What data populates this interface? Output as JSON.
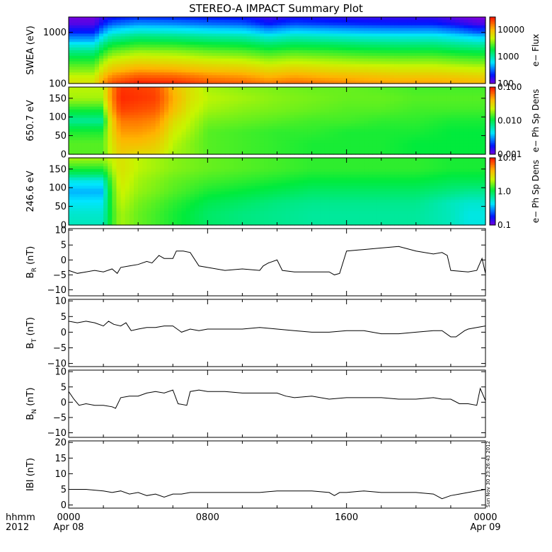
{
  "title": "STEREO-A IMPACT Summary Plot",
  "time_axis": {
    "corner_labels": [
      "hhmm",
      "2012"
    ],
    "ticks": [
      {
        "label": "0000",
        "sub": "Apr 08",
        "hour": 0
      },
      {
        "label": "0800",
        "sub": "",
        "hour": 8
      },
      {
        "label": "1600",
        "sub": "",
        "hour": 16
      },
      {
        "label": "0000",
        "sub": "Apr 09",
        "hour": 24
      }
    ]
  },
  "stamp": "Sun Nov 30 23:26:43 2012",
  "colors": {
    "frame": "#000000",
    "trace": "#000000",
    "background": "#ffffff"
  },
  "chart_data": [
    {
      "type": "heatmap",
      "name": "swea",
      "ylabel": "SWEA (eV)",
      "yscale": "log",
      "ylim": [
        100,
        2000
      ],
      "yticks": [
        {
          "v": 100,
          "label": "100"
        },
        {
          "v": 1000,
          "label": "1000"
        }
      ],
      "colorbar": {
        "label": "e− Flux",
        "scale": "log",
        "range": [
          100,
          30000
        ],
        "ticks": [
          {
            "v": 100,
            "label": "100"
          },
          {
            "v": 1000,
            "label": "1000"
          },
          {
            "v": 10000,
            "label": "10000"
          }
        ]
      },
      "time": [
        0,
        1.5,
        2.5,
        4,
        6,
        8,
        10,
        11.5,
        13,
        15,
        17,
        19,
        21,
        22.5,
        23.5,
        24
      ],
      "energy_levels": [
        100,
        130,
        180,
        250,
        350,
        500,
        700,
        1000,
        1400,
        2000
      ],
      "flux": [
        [
          6000,
          5000,
          3500,
          2500,
          1600,
          900,
          450,
          220,
          130,
          100
        ],
        [
          6000,
          5000,
          3500,
          2500,
          1600,
          900,
          450,
          220,
          130,
          100
        ],
        [
          20000,
          15000,
          9000,
          6000,
          3800,
          2300,
          1300,
          650,
          320,
          180
        ],
        [
          28000,
          20000,
          12000,
          7500,
          4800,
          2900,
          1700,
          850,
          420,
          220
        ],
        [
          26000,
          19000,
          11000,
          7000,
          4500,
          2800,
          1600,
          800,
          400,
          210
        ],
        [
          20000,
          15000,
          9000,
          6000,
          3800,
          2400,
          1400,
          700,
          350,
          190
        ],
        [
          18000,
          13500,
          8500,
          5500,
          3500,
          2200,
          1300,
          650,
          320,
          180
        ],
        [
          15000,
          11000,
          7000,
          4500,
          2900,
          1800,
          1000,
          480,
          220,
          130
        ],
        [
          17000,
          12500,
          8000,
          5000,
          3300,
          2000,
          1200,
          600,
          290,
          160
        ],
        [
          15000,
          11000,
          7000,
          4600,
          3000,
          1900,
          1100,
          550,
          260,
          150
        ],
        [
          13000,
          10000,
          6500,
          4200,
          2700,
          1700,
          1000,
          500,
          240,
          140
        ],
        [
          12000,
          9000,
          6000,
          4000,
          2600,
          1600,
          950,
          480,
          230,
          140
        ],
        [
          12000,
          9000,
          6000,
          4000,
          2600,
          1600,
          950,
          480,
          230,
          140
        ],
        [
          11000,
          8500,
          5500,
          3600,
          2300,
          1400,
          800,
          380,
          180,
          100
        ],
        [
          10000,
          8000,
          5200,
          3400,
          2200,
          1300,
          700,
          300,
          140,
          90
        ],
        [
          10000,
          8000,
          5200,
          3400,
          2200,
          1300,
          700,
          300,
          140,
          90
        ]
      ]
    },
    {
      "type": "heatmap",
      "name": "pad_650",
      "ylabel": "650.7 eV",
      "yscale": "linear",
      "ylim": [
        0,
        180
      ],
      "yticks": [
        {
          "v": 0,
          "label": "0"
        },
        {
          "v": 50,
          "label": "50"
        },
        {
          "v": 100,
          "label": "100"
        },
        {
          "v": 150,
          "label": "150"
        }
      ],
      "colorbar": {
        "label": "e− Ph Sp Dens",
        "scale": "log",
        "range": [
          0.001,
          0.1
        ],
        "ticks": [
          {
            "v": 0.001,
            "label": "0.001"
          },
          {
            "v": 0.01,
            "label": "0.010"
          },
          {
            "v": 0.1,
            "label": "0.100"
          }
        ]
      },
      "time": [
        0,
        1,
        2,
        3,
        4,
        5,
        6,
        7,
        8,
        10,
        12,
        14,
        16,
        18,
        20,
        22,
        23,
        24
      ],
      "pitch_angle": [
        0,
        30,
        60,
        90,
        120,
        150,
        180
      ],
      "density": [
        [
          0.015,
          0.015,
          0.012,
          0.007,
          0.012,
          0.02,
          0.022
        ],
        [
          0.015,
          0.015,
          0.012,
          0.007,
          0.012,
          0.02,
          0.022
        ],
        [
          0.015,
          0.015,
          0.012,
          0.007,
          0.012,
          0.02,
          0.022
        ],
        [
          0.035,
          0.04,
          0.05,
          0.06,
          0.08,
          0.09,
          0.085
        ],
        [
          0.03,
          0.04,
          0.05,
          0.06,
          0.075,
          0.085,
          0.08
        ],
        [
          0.03,
          0.035,
          0.045,
          0.055,
          0.07,
          0.08,
          0.075
        ],
        [
          0.02,
          0.022,
          0.025,
          0.03,
          0.04,
          0.045,
          0.04
        ],
        [
          0.018,
          0.018,
          0.02,
          0.022,
          0.025,
          0.028,
          0.028
        ],
        [
          0.015,
          0.015,
          0.015,
          0.017,
          0.02,
          0.022,
          0.02
        ],
        [
          0.014,
          0.014,
          0.014,
          0.016,
          0.018,
          0.02,
          0.018
        ],
        [
          0.013,
          0.013,
          0.013,
          0.015,
          0.017,
          0.018,
          0.017
        ],
        [
          0.012,
          0.012,
          0.013,
          0.014,
          0.016,
          0.017,
          0.016
        ],
        [
          0.012,
          0.012,
          0.012,
          0.014,
          0.015,
          0.016,
          0.016
        ],
        [
          0.012,
          0.012,
          0.012,
          0.013,
          0.015,
          0.016,
          0.015
        ],
        [
          0.011,
          0.011,
          0.012,
          0.013,
          0.014,
          0.015,
          0.014
        ],
        [
          0.011,
          0.011,
          0.011,
          0.012,
          0.014,
          0.015,
          0.014
        ],
        [
          0.011,
          0.011,
          0.011,
          0.012,
          0.014,
          0.015,
          0.014
        ],
        [
          0.011,
          0.011,
          0.011,
          0.012,
          0.014,
          0.015,
          0.014
        ]
      ]
    },
    {
      "type": "heatmap",
      "name": "pad_246",
      "ylabel": "246.6 eV",
      "yscale": "linear",
      "ylim": [
        0,
        180
      ],
      "yticks": [
        {
          "v": 0,
          "label": "0"
        },
        {
          "v": 50,
          "label": "50"
        },
        {
          "v": 100,
          "label": "100"
        },
        {
          "v": 150,
          "label": "150"
        }
      ],
      "colorbar": {
        "label": "e− Ph Sp Dens",
        "scale": "log",
        "range": [
          0.1,
          10
        ],
        "ticks": [
          {
            "v": 0.1,
            "label": "0.1"
          },
          {
            "v": 1,
            "label": "1.0"
          },
          {
            "v": 10,
            "label": "10.0"
          }
        ]
      },
      "time": [
        0,
        1,
        2,
        3,
        4,
        6,
        8,
        10,
        12,
        14,
        16,
        18,
        20,
        22,
        23,
        24
      ],
      "pitch_angle": [
        0,
        30,
        60,
        90,
        120,
        150,
        180
      ],
      "density": [
        [
          0.6,
          0.55,
          0.45,
          0.35,
          0.5,
          1.2,
          2.0
        ],
        [
          0.6,
          0.55,
          0.45,
          0.35,
          0.5,
          1.2,
          2.0
        ],
        [
          0.6,
          0.55,
          0.45,
          0.35,
          0.5,
          1.2,
          2.0
        ],
        [
          2.0,
          2.0,
          2.2,
          2.4,
          2.6,
          2.8,
          2.8
        ],
        [
          1.6,
          1.6,
          1.7,
          1.9,
          2.0,
          2.2,
          2.2
        ],
        [
          1.2,
          1.2,
          1.3,
          1.5,
          1.6,
          1.8,
          1.8
        ],
        [
          0.9,
          0.9,
          1.0,
          1.2,
          1.4,
          1.6,
          1.6
        ],
        [
          0.8,
          0.8,
          0.9,
          1.1,
          1.3,
          1.5,
          1.5
        ],
        [
          0.75,
          0.75,
          0.8,
          1.0,
          1.2,
          1.4,
          1.4
        ],
        [
          0.7,
          0.7,
          0.75,
          0.9,
          1.1,
          1.3,
          1.3
        ],
        [
          0.7,
          0.7,
          0.75,
          0.9,
          1.1,
          1.3,
          1.3
        ],
        [
          0.7,
          0.7,
          0.75,
          0.9,
          1.1,
          1.3,
          1.3
        ],
        [
          0.7,
          0.7,
          0.75,
          0.9,
          1.1,
          1.3,
          1.3
        ],
        [
          0.6,
          0.6,
          0.6,
          0.8,
          1.0,
          1.2,
          1.2
        ],
        [
          0.5,
          0.5,
          0.55,
          0.75,
          1.0,
          1.2,
          1.2
        ],
        [
          0.5,
          0.5,
          0.55,
          0.75,
          1.0,
          1.2,
          1.2
        ]
      ]
    },
    {
      "type": "line",
      "name": "br",
      "ylabel_main": "B",
      "ylabel_sub": "R",
      "ylabel_unit": " (nT)",
      "ylim": [
        -12,
        10.5
      ],
      "yticks": [
        {
          "v": -10,
          "label": "−10"
        },
        {
          "v": -5,
          "label": "−5"
        },
        {
          "v": 0,
          "label": "0"
        },
        {
          "v": 5,
          "label": "5"
        },
        {
          "v": 10,
          "label": "10"
        }
      ],
      "x": [
        0,
        0.5,
        1,
        1.5,
        2,
        2.5,
        2.8,
        3,
        3.5,
        4,
        4.5,
        4.8,
        5.2,
        5.5,
        6,
        6.2,
        6.6,
        7,
        7.5,
        8,
        9,
        10,
        11,
        11.2,
        11.5,
        12,
        12.3,
        13,
        14,
        15,
        15.3,
        15.6,
        16,
        17,
        18,
        19,
        20,
        21,
        21.5,
        21.8,
        22,
        23,
        23.5,
        23.8,
        24
      ],
      "y": [
        -3.5,
        -4.5,
        -4,
        -3.5,
        -4,
        -3,
        -4.5,
        -2.5,
        -2,
        -1.5,
        -0.5,
        -1,
        1.5,
        0.5,
        0.5,
        3,
        3,
        2.5,
        -2,
        -2.5,
        -3.5,
        -3,
        -3.5,
        -2,
        -1,
        0,
        -3.5,
        -4,
        -4,
        -4,
        -5,
        -4.5,
        3,
        3.5,
        4,
        4.5,
        3,
        2,
        2.5,
        1.5,
        -3.5,
        -4,
        -3.5,
        0.5,
        -4.5
      ]
    },
    {
      "type": "line",
      "name": "bt",
      "ylabel_main": "B",
      "ylabel_sub": "T",
      "ylabel_unit": " (nT)",
      "ylim": [
        -11,
        10.5
      ],
      "yticks": [
        {
          "v": -10,
          "label": "−10"
        },
        {
          "v": -5,
          "label": "−5"
        },
        {
          "v": 0,
          "label": "0"
        },
        {
          "v": 5,
          "label": "5"
        },
        {
          "v": 10,
          "label": "10"
        }
      ],
      "x": [
        0,
        0.5,
        1,
        1.5,
        2,
        2.3,
        2.6,
        3,
        3.3,
        3.6,
        4,
        4.5,
        5,
        5.5,
        6,
        6.5,
        7,
        7.5,
        8,
        9,
        10,
        11,
        12,
        13,
        14,
        15,
        16,
        17,
        18,
        19,
        20,
        21,
        21.5,
        22,
        22.3,
        22.8,
        23,
        23.5,
        24
      ],
      "y": [
        3.5,
        3,
        3.5,
        3,
        2,
        3.5,
        2.5,
        2,
        3,
        0.5,
        1,
        1.5,
        1.5,
        2,
        2,
        0,
        1,
        0.5,
        1,
        1,
        1,
        1.5,
        1,
        0.5,
        0,
        0,
        0.5,
        0.5,
        -0.5,
        -0.5,
        0,
        0.5,
        0.5,
        -1.5,
        -1.5,
        0.5,
        1,
        1.5,
        2
      ]
    },
    {
      "type": "line",
      "name": "bn",
      "ylabel_main": "B",
      "ylabel_sub": "N",
      "ylabel_unit": " (nT)",
      "ylim": [
        -11.5,
        10.5
      ],
      "yticks": [
        {
          "v": -10,
          "label": "−10"
        },
        {
          "v": -5,
          "label": "−5"
        },
        {
          "v": 0,
          "label": "0"
        },
        {
          "v": 5,
          "label": "5"
        },
        {
          "v": 10,
          "label": "10"
        }
      ],
      "x": [
        0,
        0.3,
        0.6,
        1,
        1.5,
        2,
        2.5,
        2.7,
        3,
        3.5,
        4,
        4.5,
        5,
        5.5,
        6,
        6.3,
        6.8,
        7,
        7.5,
        8,
        9,
        10,
        11,
        12,
        12.5,
        13,
        14,
        15,
        16,
        17,
        18,
        19,
        20,
        21,
        21.5,
        22,
        22.5,
        23,
        23.5,
        23.7,
        24
      ],
      "y": [
        3.5,
        1,
        -1,
        -0.5,
        -1,
        -1,
        -1.5,
        -2,
        1.5,
        2,
        2,
        3,
        3.5,
        3,
        4,
        -0.5,
        -1,
        3.5,
        4,
        3.5,
        3.5,
        3,
        3,
        3,
        2,
        1.5,
        2,
        1,
        1.5,
        1.5,
        1.5,
        1,
        1,
        1.5,
        1,
        1,
        -0.5,
        -0.5,
        -1,
        4.5,
        0.5
      ]
    },
    {
      "type": "line",
      "name": "bmag",
      "ylabel_main": "IBI (nT)",
      "ylabel_sub": "",
      "ylabel_unit": "",
      "ylim": [
        -1,
        20.5
      ],
      "yticks": [
        {
          "v": 0,
          "label": "0"
        },
        {
          "v": 5,
          "label": "5"
        },
        {
          "v": 10,
          "label": "10"
        },
        {
          "v": 15,
          "label": "15"
        },
        {
          "v": 20,
          "label": "20"
        }
      ],
      "x": [
        0,
        1,
        2,
        2.5,
        3,
        3.5,
        4,
        4.5,
        5,
        5.5,
        6,
        6.5,
        7,
        8,
        9,
        10,
        11,
        12,
        13,
        14,
        15,
        15.3,
        15.6,
        16,
        17,
        18,
        19,
        20,
        21,
        21.5,
        22,
        22.5,
        23,
        24
      ],
      "y": [
        5,
        5,
        4.5,
        4,
        4.5,
        3.5,
        4,
        3,
        3.5,
        2.5,
        3.5,
        3.5,
        4,
        4,
        4,
        4,
        4,
        4.5,
        4.5,
        4.5,
        4,
        3,
        4,
        4,
        4.5,
        4,
        4,
        4,
        3.5,
        2,
        3,
        3.5,
        4,
        5
      ]
    }
  ]
}
